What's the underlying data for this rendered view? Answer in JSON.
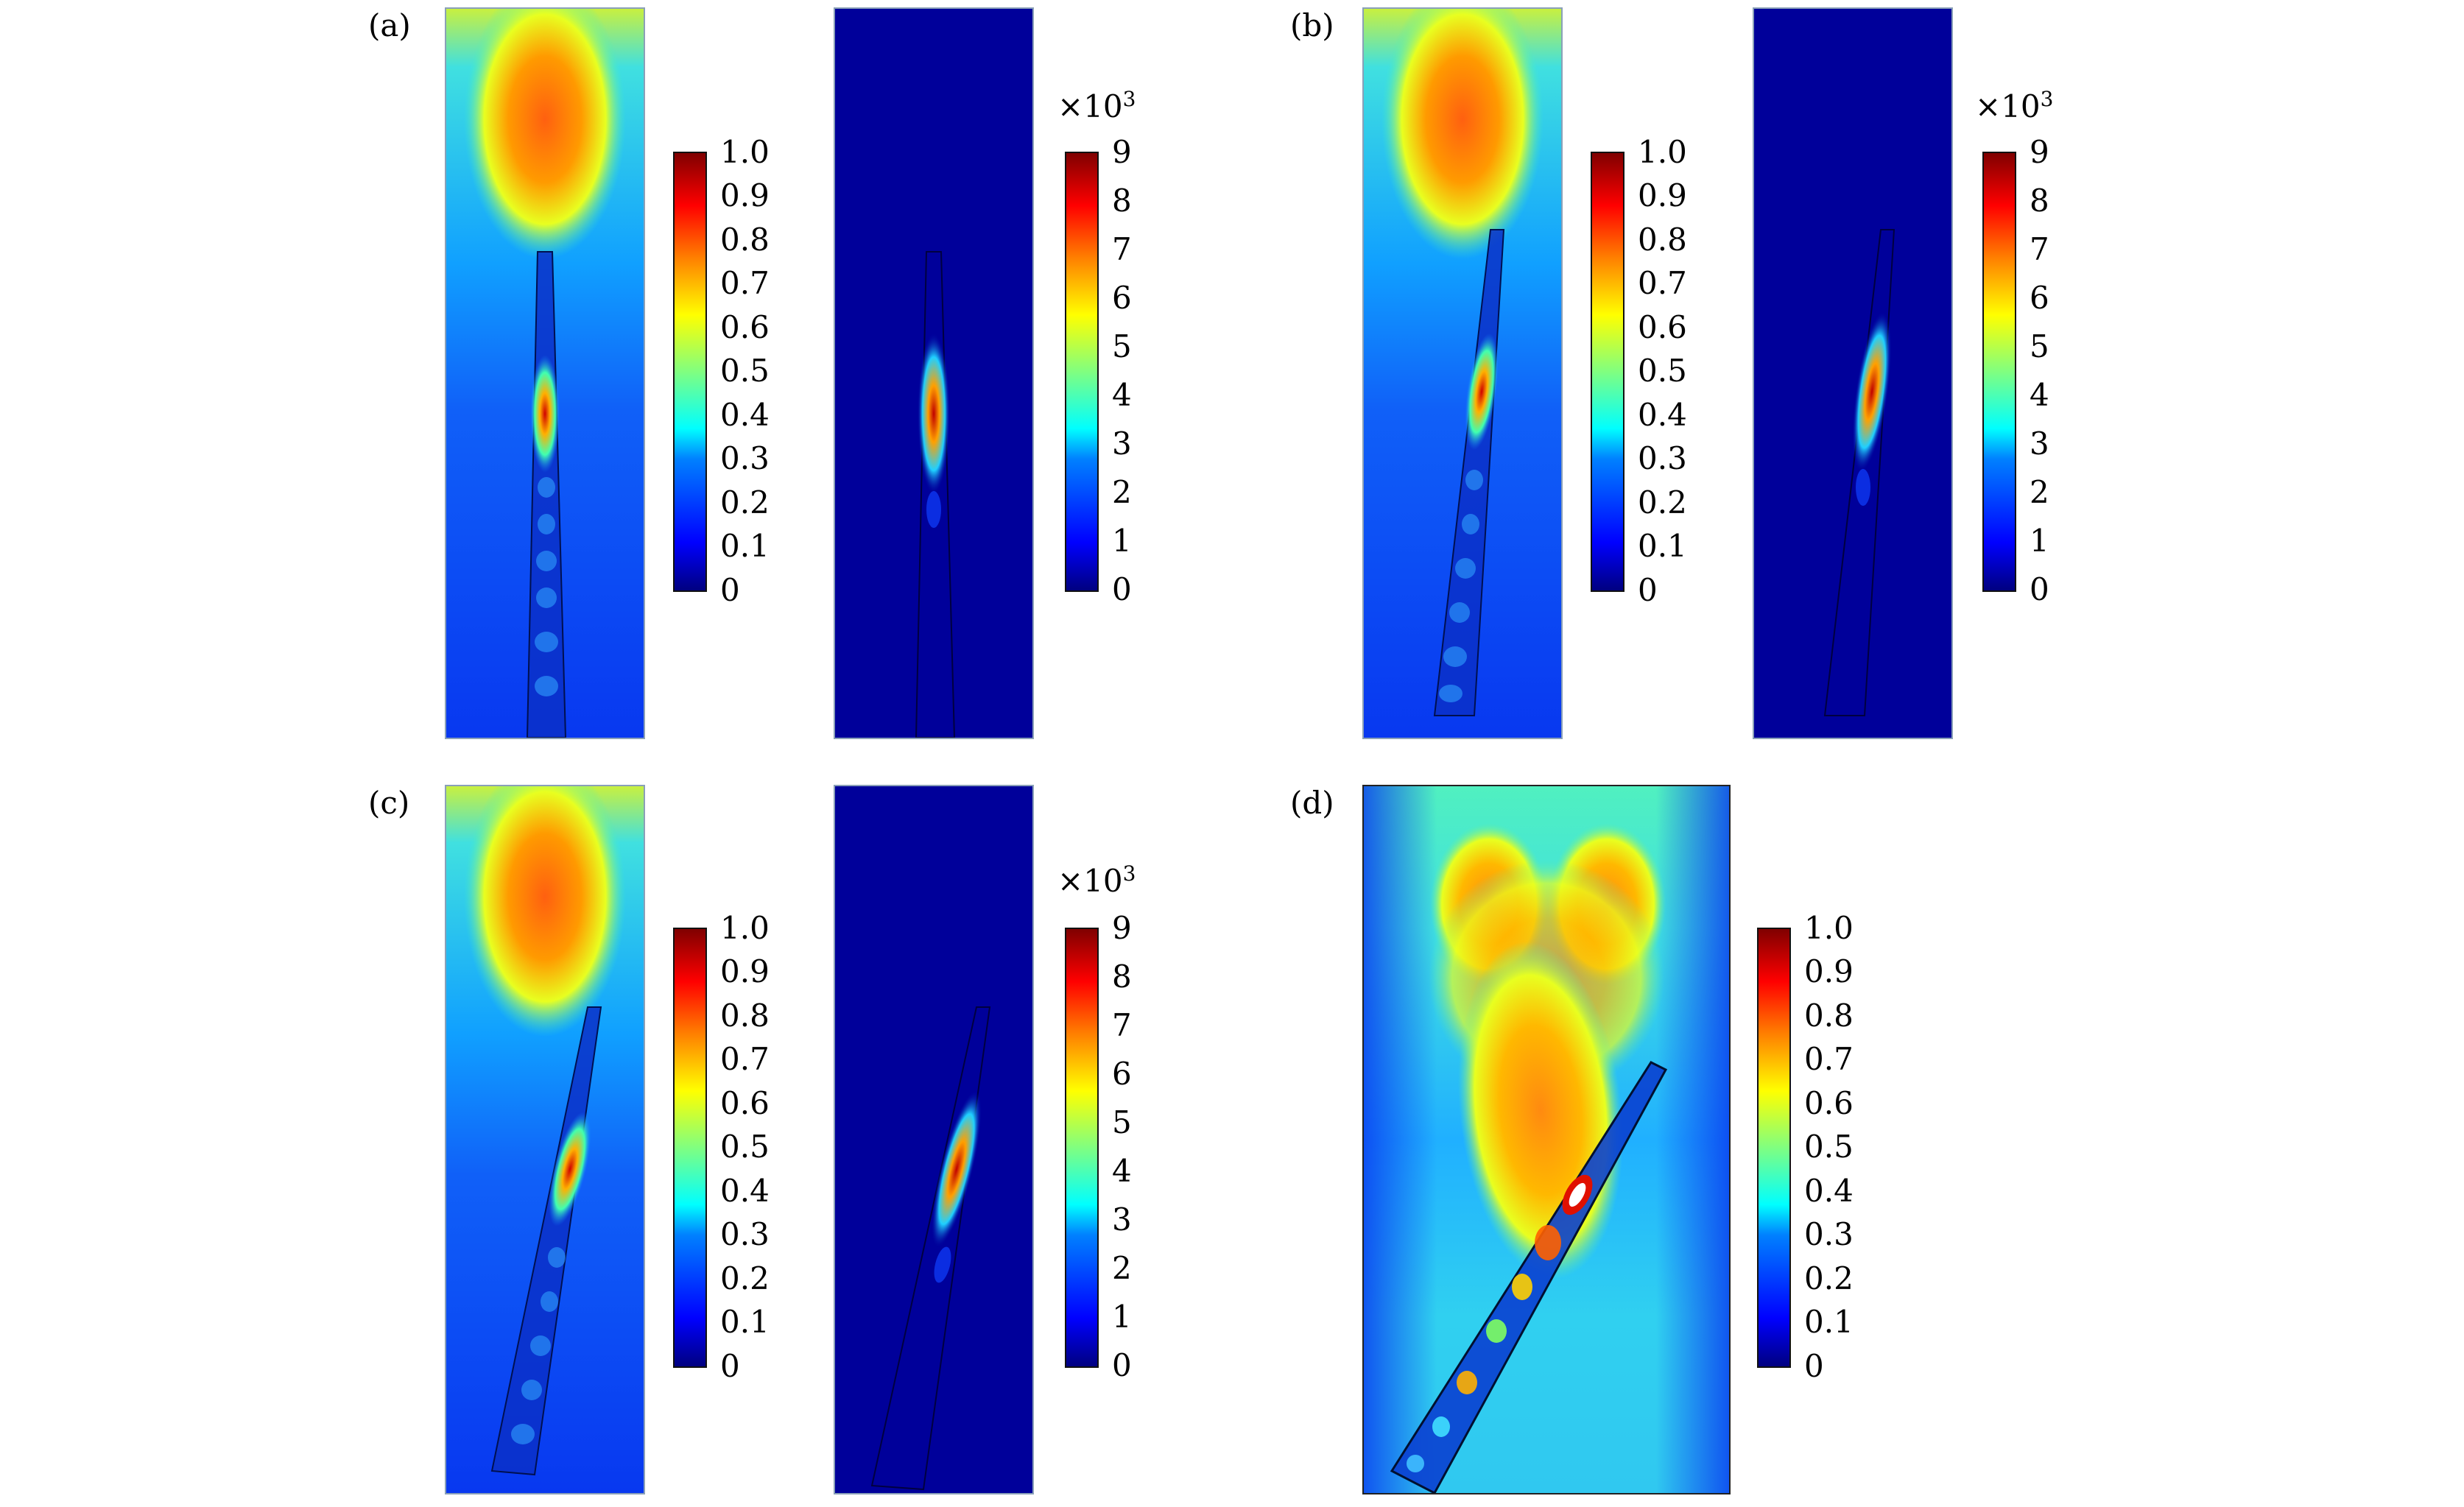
{
  "figure": {
    "panels": [
      {
        "id": "a",
        "label": "(a)"
      },
      {
        "id": "b",
        "label": "(b)"
      },
      {
        "id": "c",
        "label": "(c)"
      },
      {
        "id": "d",
        "label": "(d)"
      }
    ],
    "colorbar_norm": {
      "ticks": [
        "1.0",
        "0.9",
        "0.8",
        "0.7",
        "0.6",
        "0.5",
        "0.4",
        "0.3",
        "0.2",
        "0.1",
        "0"
      ]
    },
    "colorbar_abs": {
      "multiplier_base": "×10",
      "multiplier_exp": "3",
      "ticks": [
        "9",
        "8",
        "7",
        "6",
        "5",
        "4",
        "3",
        "2",
        "1",
        "0"
      ]
    },
    "colors": {
      "jet_low": "#00008f",
      "jet_mid": "#ffff00",
      "jet_high": "#800000",
      "background_field": "#0a3cf0"
    }
  }
}
